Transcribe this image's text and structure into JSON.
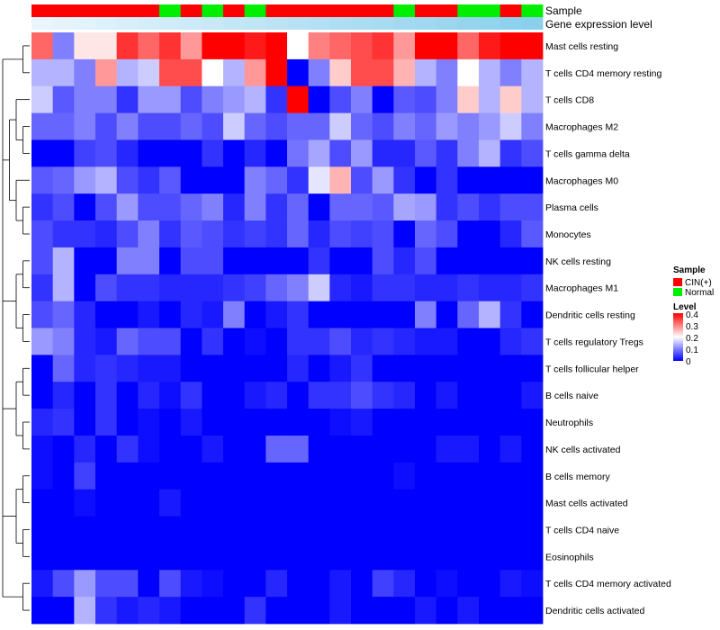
{
  "chart_data": {
    "type": "heatmap",
    "title": "",
    "annotation_rows": [
      {
        "label": "Sample",
        "kind": "categorical"
      },
      {
        "label": "Gene expression level",
        "kind": "gradient"
      }
    ],
    "sample_groups": [
      "CIN(+)",
      "CIN(+)",
      "CIN(+)",
      "CIN(+)",
      "CIN(+)",
      "CIN(+)",
      "Normal",
      "CIN(+)",
      "Normal",
      "CIN(+)",
      "Normal",
      "CIN(+)",
      "CIN(+)",
      "CIN(+)",
      "CIN(+)",
      "CIN(+)",
      "CIN(+)",
      "Normal",
      "CIN(+)",
      "CIN(+)",
      "Normal",
      "Normal",
      "CIN(+)",
      "Normal"
    ],
    "expression_level": [
      0.05,
      0.09,
      0.13,
      0.17,
      0.21,
      0.25,
      0.29,
      0.33,
      0.37,
      0.41,
      0.45,
      0.49,
      0.53,
      0.57,
      0.61,
      0.65,
      0.69,
      0.73,
      0.77,
      0.81,
      0.85,
      0.89,
      0.93,
      0.97
    ],
    "rows": [
      "Mast cells resting",
      "T cells CD4 memory resting",
      "T cells CD8",
      "Macrophages M2",
      "T cells gamma delta",
      "Macrophages M0",
      "Plasma cells",
      "Monocytes",
      "NK cells resting",
      "Macrophages M1",
      "Dendritic cells resting",
      "T cells regulatory  Tregs",
      "T cells follicular helper",
      "B cells naive",
      "Neutrophils",
      "NK cells activated",
      "B cells memory",
      "Mast cells activated",
      "T cells CD4 naive",
      "Eosinophils",
      "T cells CD4 memory activated",
      "Dendritic cells activated"
    ],
    "values": [
      [
        0.32,
        0.1,
        0.22,
        0.22,
        0.36,
        0.32,
        0.36,
        0.28,
        0.4,
        0.4,
        0.38,
        0.4,
        0.2,
        0.3,
        0.32,
        0.34,
        0.36,
        0.28,
        0.4,
        0.4,
        0.32,
        0.38,
        0.4,
        0.4
      ],
      [
        0.14,
        0.14,
        0.1,
        0.28,
        0.14,
        0.16,
        0.34,
        0.34,
        0.2,
        0.14,
        0.28,
        0.4,
        0.0,
        0.1,
        0.24,
        0.34,
        0.34,
        0.26,
        0.14,
        0.1,
        0.2,
        0.14,
        0.1,
        0.14
      ],
      [
        0.16,
        0.07,
        0.1,
        0.1,
        0.04,
        0.12,
        0.12,
        0.06,
        0.1,
        0.12,
        0.14,
        0.04,
        0.4,
        0.0,
        0.06,
        0.1,
        0.0,
        0.07,
        0.06,
        0.1,
        0.24,
        0.14,
        0.24,
        0.14
      ],
      [
        0.08,
        0.08,
        0.1,
        0.06,
        0.1,
        0.06,
        0.06,
        0.08,
        0.06,
        0.16,
        0.08,
        0.06,
        0.08,
        0.08,
        0.16,
        0.08,
        0.06,
        0.1,
        0.08,
        0.12,
        0.1,
        0.12,
        0.16,
        0.1
      ],
      [
        0.0,
        0.0,
        0.05,
        0.06,
        0.03,
        0.0,
        0.0,
        0.0,
        0.04,
        0.0,
        0.03,
        0.0,
        0.09,
        0.13,
        0.06,
        0.12,
        0.03,
        0.03,
        0.07,
        0.04,
        0.1,
        0.14,
        0.04,
        0.06
      ],
      [
        0.07,
        0.08,
        0.12,
        0.14,
        0.06,
        0.04,
        0.07,
        0.0,
        0.0,
        0.0,
        0.1,
        0.08,
        0.04,
        0.18,
        0.26,
        0.06,
        0.12,
        0.04,
        0.0,
        0.04,
        0.0,
        0.0,
        0.0,
        0.0
      ],
      [
        0.04,
        0.06,
        0.0,
        0.06,
        0.12,
        0.06,
        0.06,
        0.08,
        0.1,
        0.03,
        0.1,
        0.04,
        0.08,
        0.0,
        0.08,
        0.08,
        0.07,
        0.13,
        0.12,
        0.04,
        0.06,
        0.04,
        0.06,
        0.06
      ],
      [
        0.06,
        0.04,
        0.04,
        0.03,
        0.06,
        0.1,
        0.04,
        0.07,
        0.06,
        0.04,
        0.05,
        0.04,
        0.08,
        0.03,
        0.06,
        0.05,
        0.06,
        0.0,
        0.08,
        0.06,
        0.0,
        0.0,
        0.03,
        0.07
      ],
      [
        0.06,
        0.14,
        0.0,
        0.0,
        0.1,
        0.1,
        0.0,
        0.06,
        0.06,
        0.0,
        0.0,
        0.0,
        0.0,
        0.04,
        0.0,
        0.0,
        0.06,
        0.03,
        0.06,
        0.0,
        0.0,
        0.0,
        0.0,
        0.0
      ],
      [
        0.04,
        0.14,
        0.0,
        0.06,
        0.04,
        0.04,
        0.03,
        0.03,
        0.03,
        0.04,
        0.05,
        0.08,
        0.1,
        0.16,
        0.03,
        0.02,
        0.04,
        0.04,
        0.03,
        0.03,
        0.04,
        0.03,
        0.03,
        0.04
      ],
      [
        0.06,
        0.08,
        0.03,
        0.0,
        0.0,
        0.02,
        0.0,
        0.03,
        0.02,
        0.1,
        0.0,
        0.02,
        0.04,
        0.0,
        0.0,
        0.0,
        0.0,
        0.0,
        0.1,
        0.0,
        0.08,
        0.14,
        0.04,
        0.0
      ],
      [
        0.12,
        0.1,
        0.03,
        0.02,
        0.08,
        0.06,
        0.06,
        0.0,
        0.04,
        0.0,
        0.01,
        0.0,
        0.04,
        0.04,
        0.06,
        0.03,
        0.04,
        0.03,
        0.02,
        0.02,
        0.0,
        0.0,
        0.03,
        0.04
      ],
      [
        0.0,
        0.08,
        0.03,
        0.04,
        0.03,
        0.02,
        0.02,
        0.0,
        0.0,
        0.0,
        0.0,
        0.0,
        0.03,
        0.0,
        0.02,
        0.04,
        0.0,
        0.0,
        0.0,
        0.0,
        0.0,
        0.0,
        0.0,
        0.0
      ],
      [
        0.0,
        0.03,
        0.0,
        0.04,
        0.0,
        0.03,
        0.01,
        0.04,
        0.0,
        0.0,
        0.02,
        0.03,
        0.0,
        0.04,
        0.04,
        0.06,
        0.04,
        0.03,
        0.0,
        0.02,
        0.0,
        0.0,
        0.0,
        0.02
      ],
      [
        0.03,
        0.04,
        0.0,
        0.04,
        0.0,
        0.01,
        0.0,
        0.02,
        0.0,
        0.0,
        0.0,
        0.0,
        0.0,
        0.0,
        0.01,
        0.02,
        0.0,
        0.0,
        0.0,
        0.0,
        0.0,
        0.0,
        0.0,
        0.0
      ],
      [
        0.01,
        0.0,
        0.03,
        0.0,
        0.04,
        0.01,
        0.0,
        0.0,
        0.02,
        0.0,
        0.0,
        0.08,
        0.08,
        0.0,
        0.0,
        0.0,
        0.0,
        0.0,
        0.0,
        0.02,
        0.02,
        0.0,
        0.02,
        0.0
      ],
      [
        0.01,
        0.0,
        0.05,
        0.0,
        0.0,
        0.0,
        0.0,
        0.0,
        0.0,
        0.0,
        0.0,
        0.0,
        0.0,
        0.0,
        0.0,
        0.0,
        0.0,
        0.01,
        0.0,
        0.0,
        0.0,
        0.0,
        0.0,
        0.0
      ],
      [
        0.0,
        0.0,
        0.01,
        0.0,
        0.0,
        0.0,
        0.02,
        0.0,
        0.0,
        0.0,
        0.0,
        0.0,
        0.0,
        0.0,
        0.0,
        0.0,
        0.0,
        0.0,
        0.0,
        0.0,
        0.0,
        0.0,
        0.0,
        0.0
      ],
      [
        0.0,
        0.0,
        0.0,
        0.0,
        0.0,
        0.0,
        0.0,
        0.0,
        0.0,
        0.0,
        0.0,
        0.0,
        0.0,
        0.0,
        0.0,
        0.0,
        0.0,
        0.0,
        0.0,
        0.0,
        0.0,
        0.0,
        0.0,
        0.0
      ],
      [
        0.0,
        0.0,
        0.0,
        0.0,
        0.0,
        0.0,
        0.0,
        0.0,
        0.0,
        0.0,
        0.0,
        0.0,
        0.0,
        0.0,
        0.0,
        0.0,
        0.0,
        0.0,
        0.0,
        0.0,
        0.0,
        0.0,
        0.0,
        0.0
      ],
      [
        0.02,
        0.06,
        0.12,
        0.06,
        0.06,
        0.0,
        0.06,
        0.02,
        0.01,
        0.0,
        0.0,
        0.03,
        0.0,
        0.0,
        0.02,
        0.0,
        0.05,
        0.03,
        0.0,
        0.01,
        0.0,
        0.0,
        0.02,
        0.01
      ],
      [
        0.0,
        0.0,
        0.14,
        0.04,
        0.02,
        0.03,
        0.02,
        0.0,
        0.0,
        0.0,
        0.04,
        0.0,
        0.0,
        0.0,
        0.02,
        0.0,
        0.0,
        0.0,
        0.02,
        0.0,
        0.02,
        0.0,
        0.0,
        0.0
      ]
    ],
    "value_range": [
      0,
      0.4
    ],
    "color_scale": {
      "low": "#0000ff",
      "mid": "#ffffff",
      "high": "#ff0000",
      "mid_value": 0.2
    },
    "group_colors": {
      "CIN(+)": "#ff0000",
      "Normal": "#00ee00"
    },
    "expression_gradient": {
      "low": "#eef8fd",
      "high": "#87ceeb"
    },
    "legend": {
      "sample_title": "Sample",
      "sample_entries": [
        "CIN(+)",
        "Normal"
      ],
      "level_title": "Level",
      "level_ticks": [
        "0.4",
        "0.3",
        "0.2",
        "0.1",
        "0"
      ],
      "position": "right"
    },
    "row_dendrogram": [
      [
        "Mast cells resting",
        "T cells CD4 memory resting"
      ],
      [
        [
          "T cells CD8",
          [
            "Macrophages M2",
            "T cells gamma delta"
          ]
        ],
        [
          "Macrophages M0",
          [
            "Plasma cells",
            "Monocytes"
          ]
        ]
      ],
      [
        [
          "NK cells resting",
          "Macrophages M1"
        ],
        [
          "Dendritic cells resting",
          "T cells regulatory  Tregs"
        ]
      ],
      [
        [
          "T cells follicular helper",
          "B cells naive"
        ],
        [
          "Neutrophils",
          "NK cells activated"
        ]
      ],
      [
        [
          "B cells memory",
          "Mast cells activated"
        ],
        [
          "T cells CD4 naive",
          "Eosinophils"
        ]
      ],
      [
        "T cells CD4 memory activated",
        "Dendritic cells activated"
      ]
    ]
  }
}
